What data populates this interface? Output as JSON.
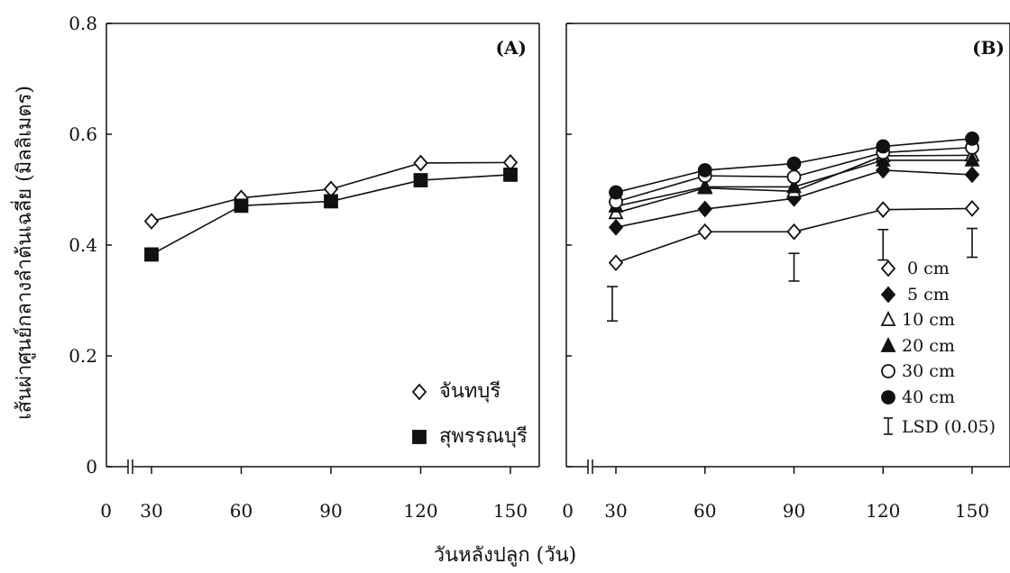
{
  "y_axis_title": "เส้นผ่าศูนย์กลางลำต้นเฉลี่ย (มิลลิเมตร)",
  "x_axis_title": "วันหลังปลูก (วัน)",
  "chart_data": [
    {
      "type": "line",
      "panel_label": "(A)",
      "x": [
        30,
        60,
        90,
        120,
        150
      ],
      "xticks": [
        0,
        30,
        60,
        90,
        120,
        150
      ],
      "xlim": [
        0,
        150
      ],
      "ylim": [
        0,
        0.8
      ],
      "yticks": [
        "0",
        "0.2",
        "0.4",
        "0.6",
        "0.8"
      ],
      "yvalues": [
        0,
        0.2,
        0.4,
        0.6,
        0.8
      ],
      "axis_break": true,
      "legend_placement": "bottom-right",
      "series": [
        {
          "name": "จันทบุรี",
          "marker": "diamond-open",
          "values": [
            0.443,
            0.485,
            0.501,
            0.548,
            0.549
          ]
        },
        {
          "name": "สุพรรณบุรี",
          "marker": "square-filled",
          "values": [
            0.383,
            0.471,
            0.479,
            0.517,
            0.527
          ]
        }
      ]
    },
    {
      "type": "line",
      "panel_label": "(B)",
      "x": [
        30,
        60,
        90,
        120,
        150
      ],
      "xticks": [
        0,
        30,
        60,
        90,
        120,
        150
      ],
      "xlim": [
        0,
        150
      ],
      "ylim": [
        0,
        0.8
      ],
      "axis_break": true,
      "legend_placement": "bottom-right",
      "series": [
        {
          "name": "0 cm",
          "marker": "diamond-open",
          "values": [
            0.368,
            0.424,
            0.424,
            0.464,
            0.466
          ]
        },
        {
          "name": "5 cm",
          "marker": "diamond-filled",
          "values": [
            0.432,
            0.465,
            0.484,
            0.535,
            0.527
          ]
        },
        {
          "name": "10 cm",
          "marker": "triangle-open",
          "values": [
            0.458,
            0.503,
            0.497,
            0.561,
            0.562
          ]
        },
        {
          "name": "20 cm",
          "marker": "triangle-filled",
          "values": [
            0.47,
            0.505,
            0.505,
            0.553,
            0.553
          ]
        },
        {
          "name": "30 cm",
          "marker": "circle-open",
          "values": [
            0.478,
            0.525,
            0.523,
            0.567,
            0.576
          ]
        },
        {
          "name": "40 cm",
          "marker": "circle-filled",
          "values": [
            0.495,
            0.535,
            0.547,
            0.578,
            0.592
          ]
        }
      ],
      "lsd": {
        "name": "LSD (0.05)",
        "bars": [
          {
            "x": 30,
            "low": 0.263,
            "high": 0.325
          },
          {
            "x": 90,
            "low": 0.335,
            "high": 0.385
          },
          {
            "x": 120,
            "low": 0.373,
            "high": 0.428
          },
          {
            "x": 150,
            "low": 0.378,
            "high": 0.43
          }
        ]
      }
    }
  ]
}
